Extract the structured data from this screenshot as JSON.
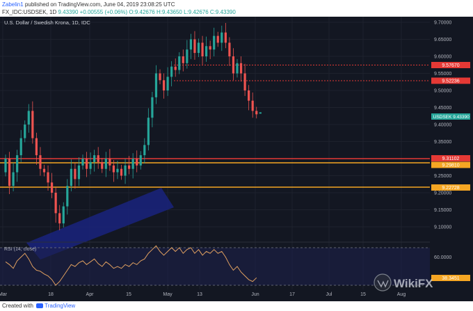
{
  "header": {
    "username": "Zabelin1",
    "published_text": "published on TradingView.com, June 04, 2019 23:08:25 UTC",
    "symbol": "FX_IDC:USDSEK, 1D",
    "last": "9.43390",
    "change": "+0.00555 (+0.06%)",
    "ohlc": "O:9.42676 H:9.43650 L:9.42676 C:9.43390"
  },
  "chart": {
    "title": "U.S. Dollar / Swedish Krona, 1D, IDC",
    "price_ticks": [
      "9.70000",
      "9.65000",
      "9.60000",
      "9.55000",
      "9.50000",
      "9.45000",
      "9.40000",
      "9.35000",
      "9.30000",
      "9.25000",
      "9.20000",
      "9.15000",
      "9.10000"
    ],
    "price_labels": [
      {
        "text": "9.57670",
        "color": "#e53935"
      },
      {
        "text": "9.52236",
        "color": "#e53935"
      },
      {
        "text": "9.31102",
        "color": "#e53935"
      },
      {
        "text": "9.29810",
        "color": "#f5a623"
      },
      {
        "text": "9.22728",
        "color": "#f5a623"
      }
    ],
    "symbol_tag": "USDSEK",
    "symbol_price": "9.43390",
    "x_labels": [
      "Mar",
      "18",
      "Apr",
      "15",
      "May",
      "13",
      "Jun",
      "17",
      "Jul",
      "15",
      "Aug"
    ],
    "rsi_title": "RSI (14, close)",
    "rsi_ticks": [
      "60.0000"
    ],
    "rsi_value": "38.3451"
  },
  "footer": {
    "created_with": "Created with",
    "brand": "TradingView"
  },
  "watermark": "WikiFX",
  "colors": {
    "bg": "#131722",
    "up": "#26a69a",
    "down": "#ef5350",
    "level_red": "#e53935",
    "level_orange": "#f5a623",
    "channel": "#1a237e"
  }
}
